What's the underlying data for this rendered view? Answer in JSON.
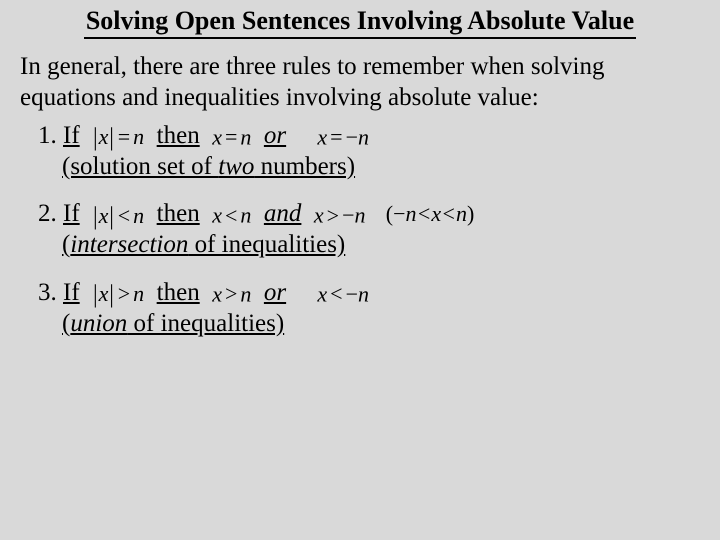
{
  "title": "Solving Open Sentences Involving Absolute Value",
  "intro": "In general, there are three rules to remember when solving equations and inequalities involving absolute value:",
  "rules": {
    "r1": {
      "num": "1.",
      "if": "If",
      "cond": "|x| = n",
      "then": "then",
      "res1": "x = n",
      "conj": "or",
      "res2": "x = −n",
      "sub_open": "(solution set of ",
      "sub_em": "two",
      "sub_close": " numbers)"
    },
    "r2": {
      "num": "2.",
      "if": "If",
      "cond": "|x| < n",
      "then": "then",
      "res1": "x < n",
      "conj": "and",
      "res2": "x > −n",
      "paren": "(−n < x < n)",
      "sub_open": "(",
      "sub_em": "intersection",
      "sub_close": " of inequalities)"
    },
    "r3": {
      "num": "3.",
      "if": "If",
      "cond": "|x| > n",
      "then": "then",
      "res1": "x > n",
      "conj": "or",
      "res2": "x < −n",
      "sub_open": "(",
      "sub_em": "union",
      "sub_close": " of inequalities)"
    }
  },
  "style": {
    "background": "#d9d9d9",
    "text_color": "#000000",
    "title_fontsize": 26,
    "body_fontsize": 25,
    "eq_fontsize": 22
  }
}
